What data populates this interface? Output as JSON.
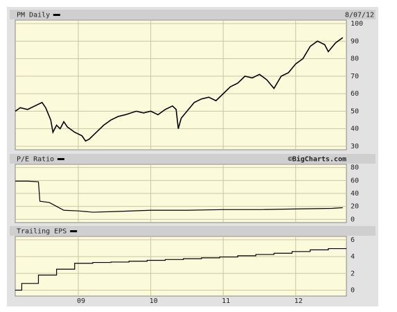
{
  "chart_data": [
    {
      "type": "line",
      "title": "PM Daily",
      "date": "8/07/12",
      "color": "#000000",
      "grid": true,
      "x": [
        8.13,
        8.2,
        8.3,
        8.4,
        8.5,
        8.55,
        8.62,
        8.65,
        8.7,
        8.75,
        8.8,
        8.85,
        8.95,
        9.05,
        9.1,
        9.15,
        9.25,
        9.35,
        9.45,
        9.55,
        9.65,
        9.8,
        9.9,
        10.0,
        10.1,
        10.2,
        10.3,
        10.35,
        10.38,
        10.42,
        10.5,
        10.6,
        10.7,
        10.8,
        10.9,
        11.0,
        11.1,
        11.2,
        11.3,
        11.4,
        11.5,
        11.6,
        11.7,
        11.8,
        11.9,
        12.0,
        12.1,
        12.2,
        12.3,
        12.4,
        12.45,
        12.55,
        12.65
      ],
      "values": [
        50,
        52,
        51,
        53,
        55,
        52,
        45,
        38,
        42,
        40,
        44,
        41,
        38,
        36,
        33,
        34,
        38,
        42,
        45,
        47,
        48,
        50,
        49,
        50,
        48,
        51,
        53,
        51,
        40,
        46,
        50,
        55,
        57,
        58,
        56,
        60,
        64,
        66,
        70,
        69,
        71,
        68,
        63,
        70,
        72,
        77,
        80,
        87,
        90,
        88,
        84,
        89,
        92
      ],
      "xlim": [
        8.13,
        12.7
      ],
      "ylim": [
        28,
        102
      ],
      "yticks": [
        30,
        40,
        50,
        60,
        70,
        80,
        90,
        100
      ]
    },
    {
      "type": "line",
      "title": "P/E Ratio",
      "source": "©BigCharts.com",
      "color": "#000000",
      "grid": true,
      "x": [
        8.13,
        8.3,
        8.45,
        8.47,
        8.6,
        8.7,
        8.8,
        9.0,
        9.2,
        9.5,
        10.0,
        10.5,
        11.0,
        11.5,
        12.0,
        12.5,
        12.65
      ],
      "values": [
        59,
        59,
        58,
        28,
        26,
        20,
        14,
        13,
        11,
        12,
        14,
        14,
        15,
        15,
        16,
        17,
        18
      ],
      "xlim": [
        8.13,
        12.7
      ],
      "ylim": [
        -5,
        85
      ],
      "yticks": [
        0,
        20,
        40,
        60,
        80
      ]
    },
    {
      "type": "line",
      "title": "Trailing EPS",
      "step": true,
      "color": "#000000",
      "grid": true,
      "x": [
        8.13,
        8.22,
        8.45,
        8.7,
        8.95,
        9.2,
        9.45,
        9.7,
        9.95,
        10.2,
        10.45,
        10.7,
        10.95,
        11.2,
        11.45,
        11.7,
        11.95,
        12.2,
        12.45
      ],
      "values": [
        0,
        0.8,
        1.8,
        2.5,
        3.2,
        3.3,
        3.35,
        3.45,
        3.55,
        3.65,
        3.75,
        3.85,
        3.95,
        4.1,
        4.25,
        4.4,
        4.6,
        4.8,
        4.95
      ],
      "xlim": [
        8.13,
        12.7
      ],
      "ylim": [
        -0.7,
        6.4
      ],
      "yticks": [
        0,
        2,
        4,
        6
      ],
      "xticks": [
        {
          "value": 9,
          "label": "09"
        },
        {
          "value": 10,
          "label": "10"
        },
        {
          "value": 11,
          "label": "11"
        },
        {
          "value": 12,
          "label": "12"
        }
      ]
    }
  ]
}
